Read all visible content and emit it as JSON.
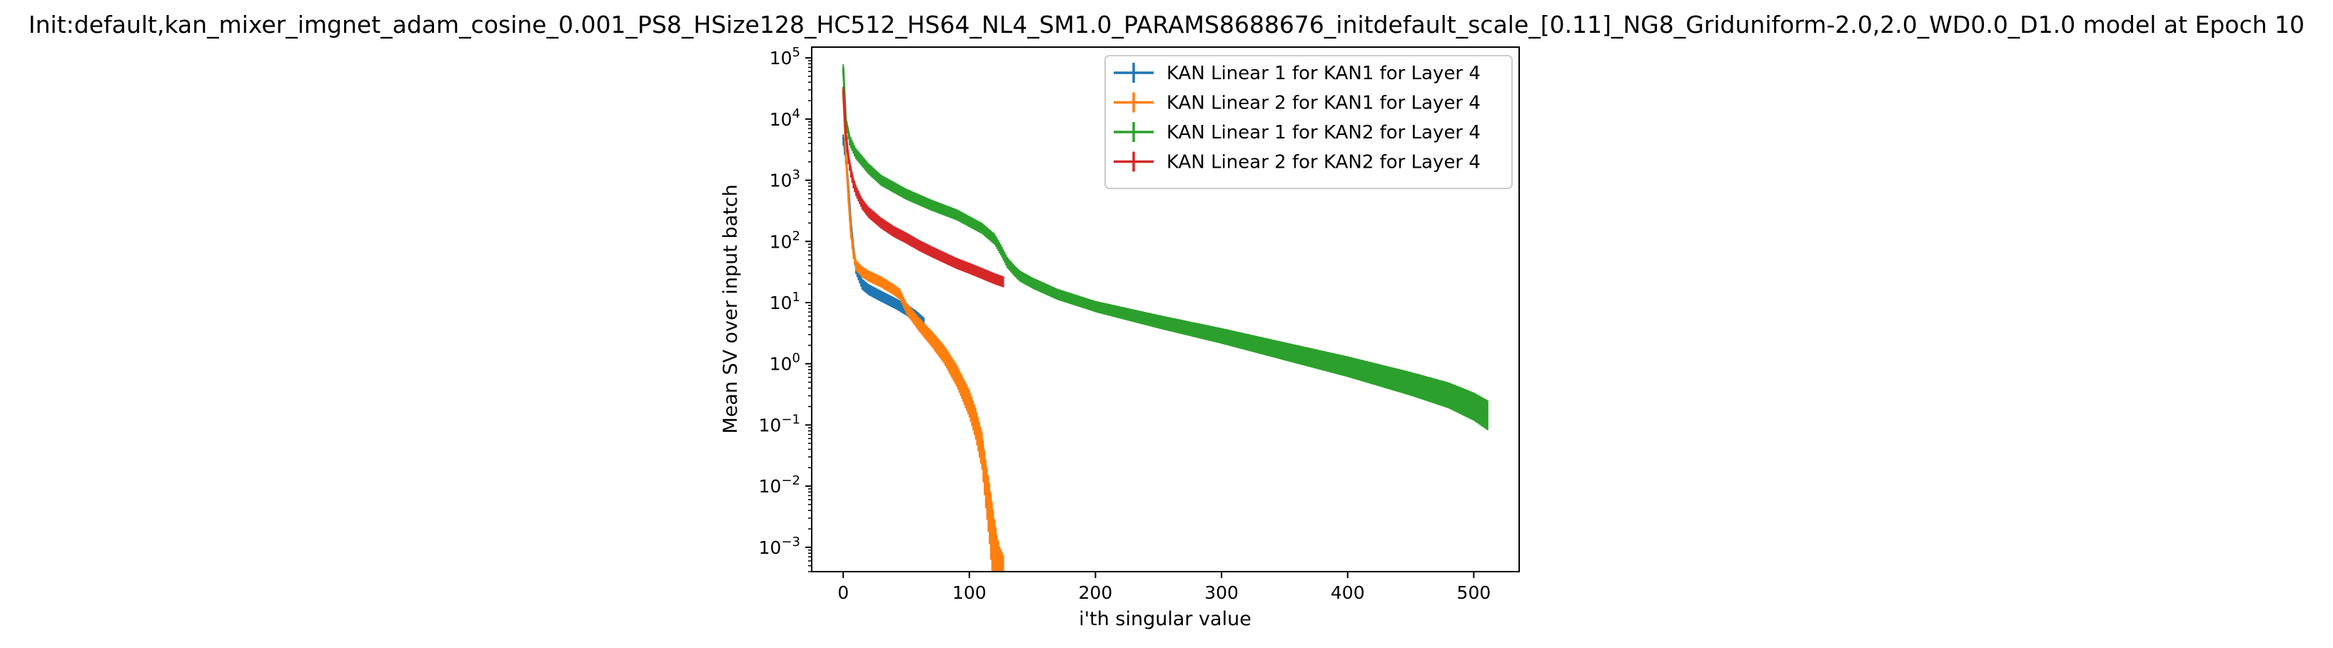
{
  "chart_data": {
    "type": "line",
    "title": "Init:default,kan_mixer_imgnet_adam_cosine_0.001_PS8_HSize128_HC512_HS64_NL4_SM1.0_PARAMS8688676_initdefault_scale_[0.11]_NG8_Griduniform-2.0,2.0_WD0.0_D1.0 model at Epoch 10",
    "xlabel": "i'th singular value",
    "ylabel": "Mean SV over input batch",
    "xlim": [
      -25,
      536
    ],
    "ylim": [
      0.0004,
      150000
    ],
    "yscale": "log",
    "xticks": [
      {
        "value": 0,
        "label": "0"
      },
      {
        "value": 100,
        "label": "100"
      },
      {
        "value": 200,
        "label": "200"
      },
      {
        "value": 300,
        "label": "300"
      },
      {
        "value": 400,
        "label": "400"
      },
      {
        "value": 500,
        "label": "500"
      }
    ],
    "yticks": [
      {
        "value": 0.001,
        "base": "10",
        "exp": "−3"
      },
      {
        "value": 0.01,
        "base": "10",
        "exp": "−2"
      },
      {
        "value": 0.1,
        "base": "10",
        "exp": "−1"
      },
      {
        "value": 1,
        "base": "10",
        "exp": "0"
      },
      {
        "value": 10,
        "base": "10",
        "exp": "1"
      },
      {
        "value": 100,
        "base": "10",
        "exp": "2"
      },
      {
        "value": 1000,
        "base": "10",
        "exp": "3"
      },
      {
        "value": 10000,
        "base": "10",
        "exp": "4"
      },
      {
        "value": 100000,
        "base": "10",
        "exp": "5"
      }
    ],
    "grid": false,
    "legend_position": "upper right",
    "series": [
      {
        "name": "KAN Linear 1 for KAN1 for Layer 4",
        "color": "#1f77b4",
        "x": [
          0,
          2,
          4,
          6,
          8,
          10,
          15,
          20,
          30,
          40,
          50,
          58,
          64
        ],
        "y": [
          5000,
          2500,
          800,
          200,
          80,
          40,
          22,
          18,
          14,
          11,
          8.5,
          6.5,
          5
        ]
      },
      {
        "name": "KAN Linear 2 for KAN1 for Layer 4",
        "color": "#ff7f0e",
        "x": [
          0,
          2,
          4,
          6,
          8,
          10,
          15,
          20,
          30,
          40,
          45,
          50,
          60,
          70,
          80,
          90,
          100,
          105,
          110,
          113,
          116,
          118,
          120,
          122,
          124,
          127
        ],
        "y": [
          30000,
          3000,
          600,
          150,
          70,
          45,
          35,
          30,
          24,
          18,
          15,
          9,
          5,
          3,
          1.7,
          0.8,
          0.3,
          0.15,
          0.06,
          0.02,
          0.008,
          0.004,
          0.002,
          0.0011,
          0.0007,
          0.0005
        ]
      },
      {
        "name": "KAN Linear 1 for KAN2 for Layer 4",
        "color": "#2ca02c",
        "x": [
          0,
          2,
          5,
          10,
          20,
          30,
          50,
          70,
          90,
          110,
          120,
          125,
          130,
          135,
          140,
          150,
          170,
          200,
          250,
          300,
          350,
          400,
          450,
          480,
          500,
          511
        ],
        "y": [
          70000,
          10000,
          5000,
          3000,
          1700,
          1100,
          650,
          430,
          300,
          180,
          120,
          80,
          50,
          38,
          30,
          23,
          15,
          9.5,
          5.5,
          3.3,
          1.9,
          1.1,
          0.6,
          0.4,
          0.27,
          0.2
        ]
      },
      {
        "name": "KAN Linear 2 for KAN2 for Layer 4",
        "color": "#d62728",
        "x": [
          0,
          2,
          4,
          6,
          8,
          10,
          15,
          20,
          30,
          40,
          50,
          60,
          70,
          80,
          90,
          100,
          110,
          120,
          127
        ],
        "y": [
          30000,
          6000,
          2500,
          1500,
          1000,
          750,
          450,
          330,
          220,
          160,
          125,
          95,
          75,
          60,
          48,
          40,
          33,
          27,
          24
        ]
      }
    ]
  }
}
